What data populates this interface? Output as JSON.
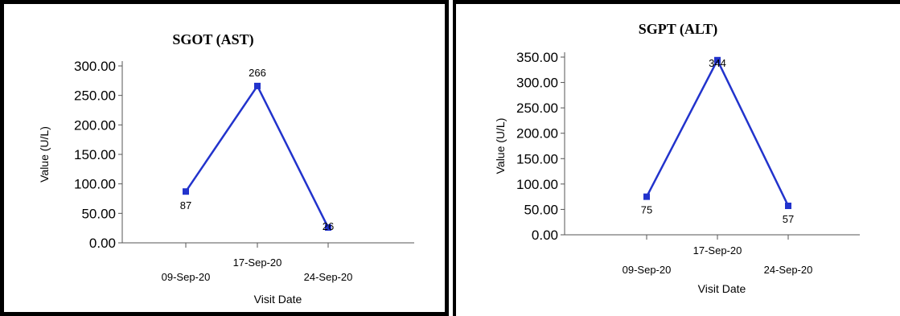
{
  "chart_data": [
    {
      "type": "line",
      "title": "SGOT (AST)",
      "xlabel": "Visit Date",
      "ylabel": "Value (U/L)",
      "categories": [
        "09-Sep-20",
        "17-Sep-20",
        "24-Sep-20"
      ],
      "values": [
        87,
        266,
        26
      ],
      "data_labels": [
        "87",
        "266",
        "26"
      ],
      "ylim": [
        0,
        300
      ],
      "yticks": [
        "0.00",
        "50.00",
        "100.00",
        "150.00",
        "200.00",
        "250.00",
        "300.00"
      ],
      "color": "#2233cc",
      "grid": false
    },
    {
      "type": "line",
      "title": "SGPT (ALT)",
      "xlabel": "Visit Date",
      "ylabel": "Value (U/L)",
      "categories": [
        "09-Sep-20",
        "17-Sep-20",
        "24-Sep-20"
      ],
      "values": [
        75,
        344,
        57
      ],
      "data_labels": [
        "75",
        "344",
        "57"
      ],
      "ylim": [
        0,
        350
      ],
      "yticks": [
        "0.00",
        "50.00",
        "100.00",
        "150.00",
        "200.00",
        "250.00",
        "300.00",
        "350.00"
      ],
      "color": "#2233cc",
      "grid": false
    }
  ]
}
